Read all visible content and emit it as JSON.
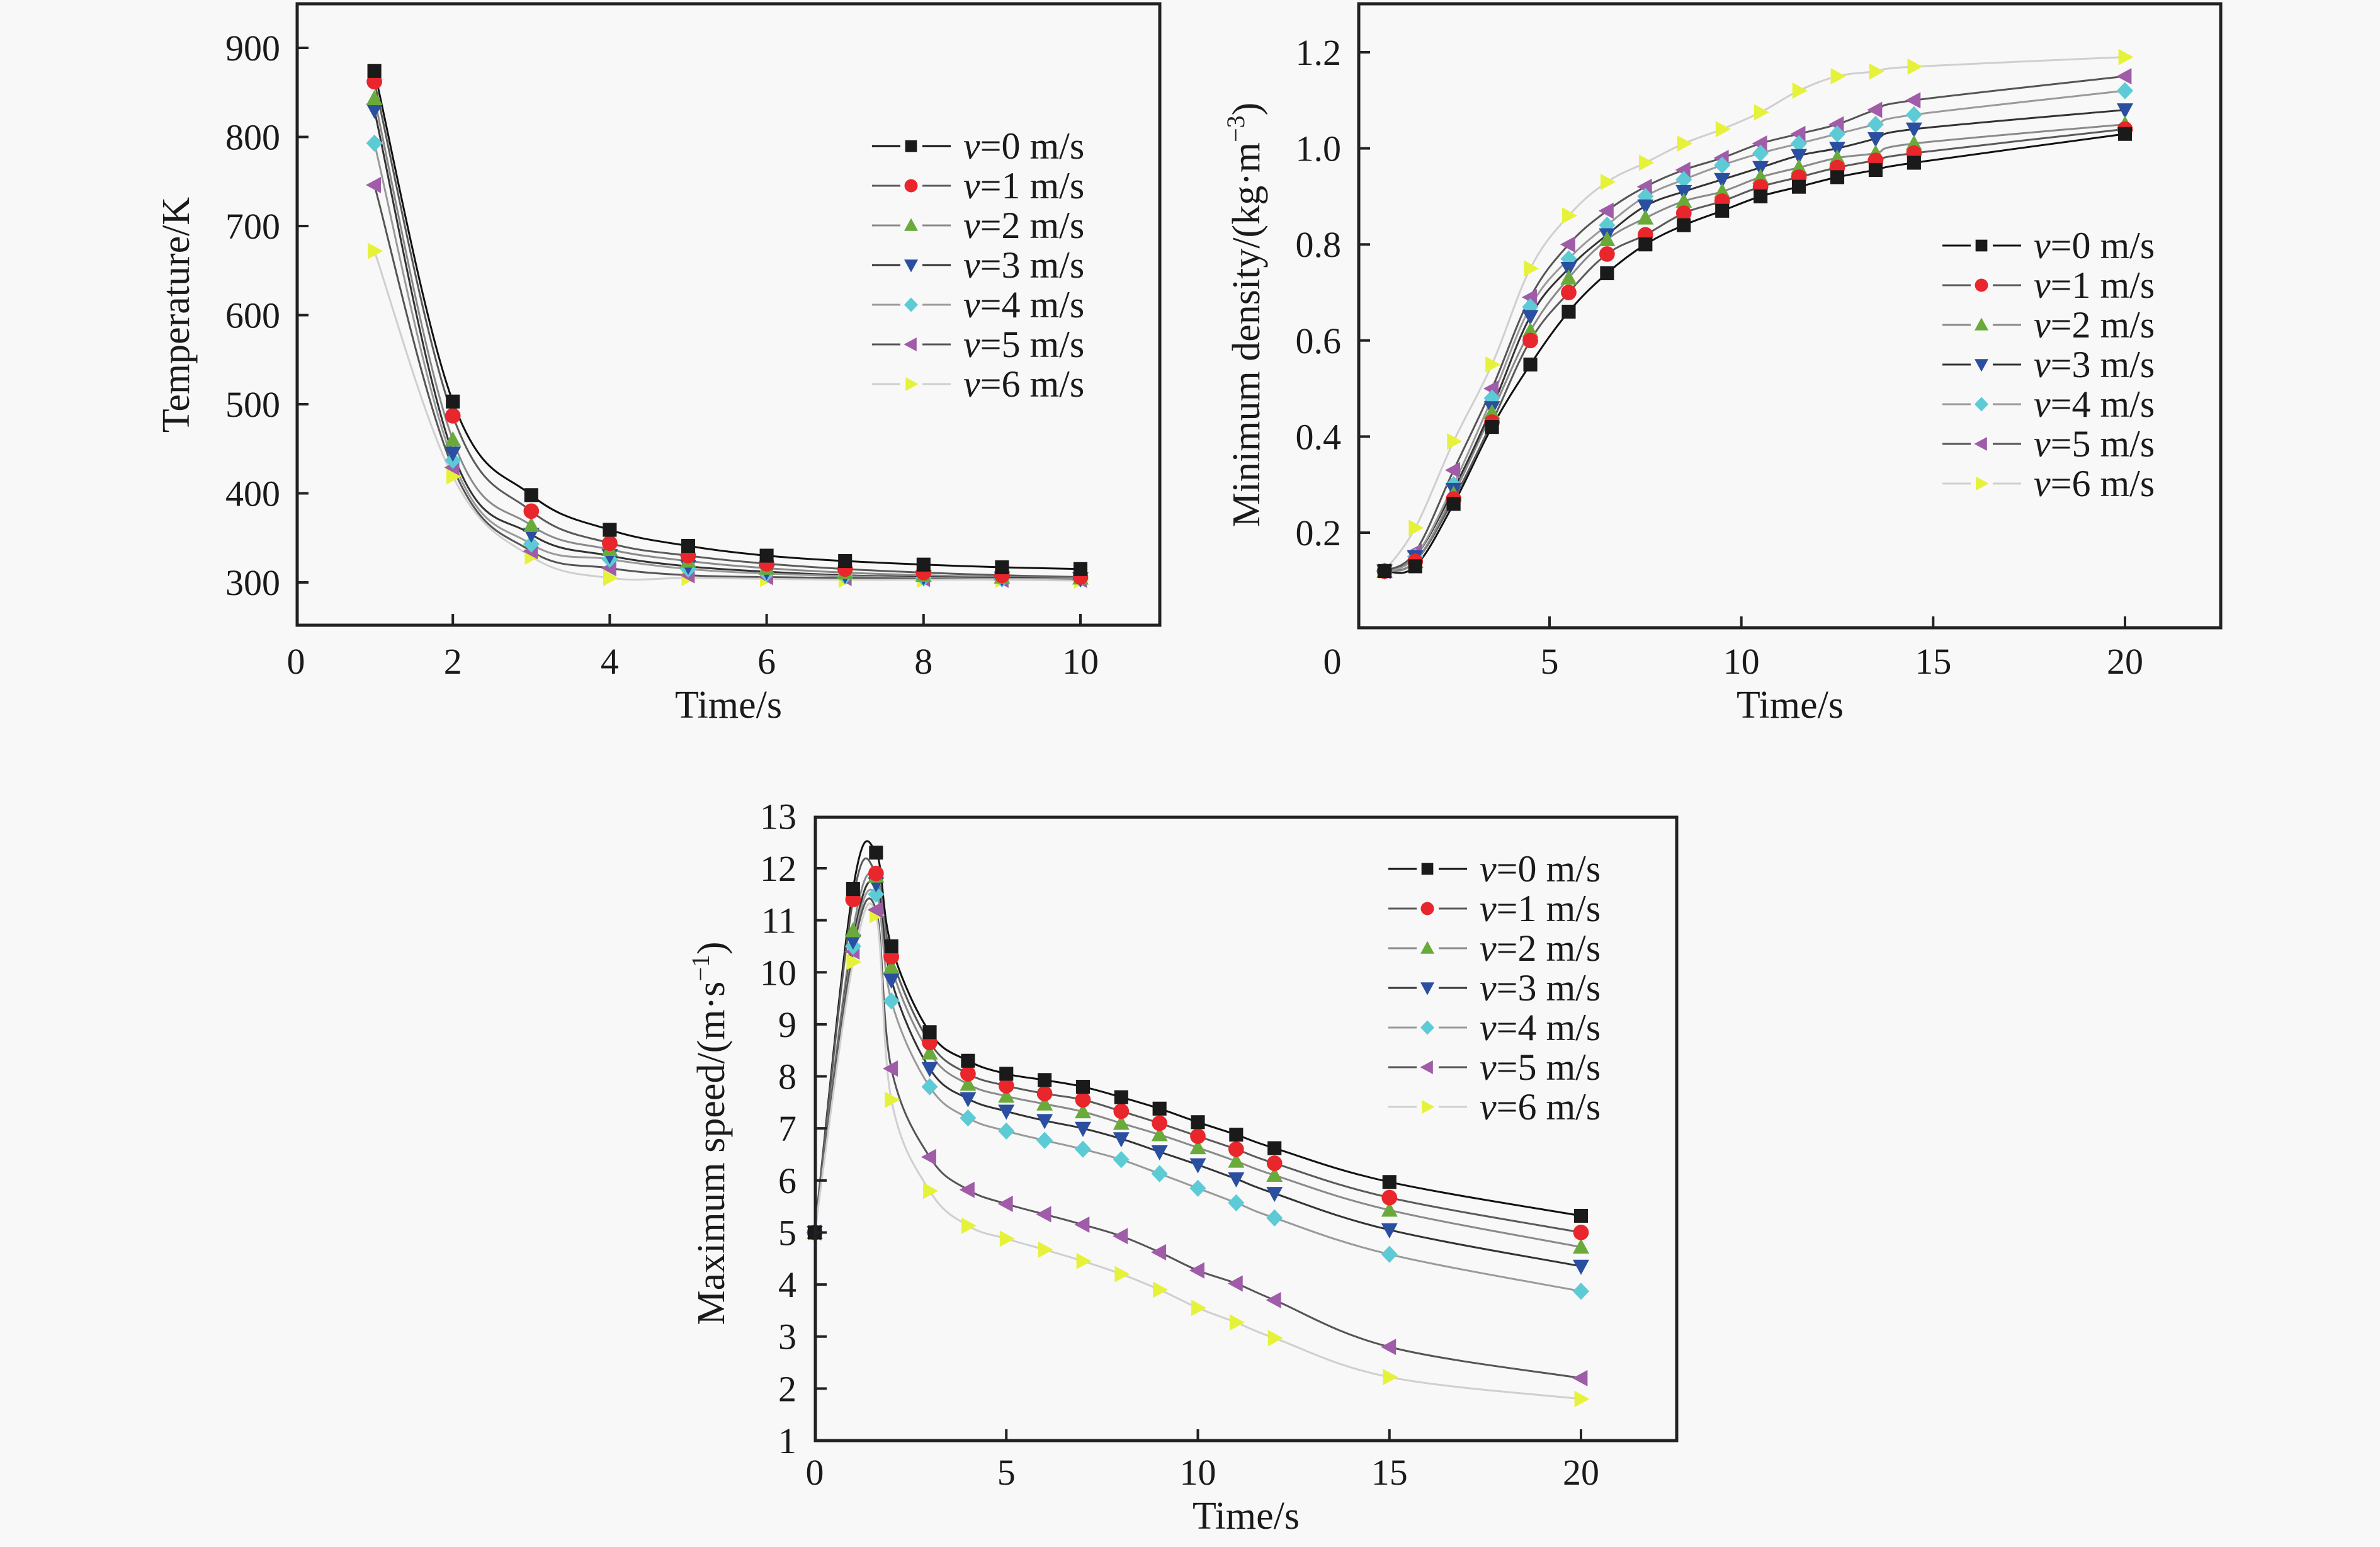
{
  "figure": {
    "background": "#f8f8f8",
    "series_styles": [
      {
        "name": "v=0 m/s",
        "prefix": "v",
        "suffix": "=0 m/s",
        "marker": "square",
        "marker_color": "#1a1a1a",
        "line_color": "#111111"
      },
      {
        "name": "v=1 m/s",
        "prefix": "v",
        "suffix": "=1 m/s",
        "marker": "circle",
        "marker_color": "#e8262b",
        "line_color": "#5a5a5a"
      },
      {
        "name": "v=2 m/s",
        "prefix": "v",
        "suffix": "=2 m/s",
        "marker": "triangle-up",
        "marker_color": "#6aaa3a",
        "line_color": "#8a8a8a"
      },
      {
        "name": "v=3 m/s",
        "prefix": "v",
        "suffix": "=3 m/s",
        "marker": "triangle-down",
        "marker_color": "#2a4fa0",
        "line_color": "#333333"
      },
      {
        "name": "v=4 m/s",
        "prefix": "v",
        "suffix": "=4 m/s",
        "marker": "diamond",
        "marker_color": "#5ccbd6",
        "line_color": "#9a9a9a"
      },
      {
        "name": "v=5 m/s",
        "prefix": "v",
        "suffix": "=5 m/s",
        "marker": "triangle-left",
        "marker_color": "#a05ca8",
        "line_color": "#555555"
      },
      {
        "name": "v=6 m/s",
        "prefix": "v",
        "suffix": "=6 m/s",
        "marker": "triangle-right",
        "marker_color": "#e6f23a",
        "line_color": "#cfcfcf"
      }
    ]
  },
  "chart_data": [
    {
      "id": "temperature",
      "type": "line",
      "title": "",
      "xlabel": "Time/s",
      "ylabel": "Temperature/K",
      "xlim": [
        0,
        11
      ],
      "ylim": [
        250,
        950
      ],
      "xticks": [
        0,
        2,
        4,
        6,
        8,
        10
      ],
      "yticks": [
        300,
        400,
        500,
        600,
        700,
        800,
        900
      ],
      "grid": false,
      "legend_position": "top-right",
      "x": [
        1,
        2,
        3,
        4,
        5,
        6,
        7,
        8,
        9,
        10
      ],
      "series": [
        {
          "name": "v=0 m/s",
          "values": [
            874,
            503,
            398,
            359,
            341,
            330,
            324,
            320,
            317,
            315
          ]
        },
        {
          "name": "v=1 m/s",
          "values": [
            862,
            487,
            380,
            344,
            330,
            321,
            315,
            311,
            308,
            306
          ]
        },
        {
          "name": "v=2 m/s",
          "values": [
            843,
            460,
            364,
            337,
            324,
            316,
            311,
            308,
            306,
            305
          ]
        },
        {
          "name": "v=3 m/s",
          "values": [
            830,
            445,
            354,
            330,
            318,
            312,
            308,
            306,
            305,
            304
          ]
        },
        {
          "name": "v=4 m/s",
          "values": [
            793,
            437,
            343,
            326,
            315,
            310,
            307,
            305,
            304,
            304
          ]
        },
        {
          "name": "v=5 m/s",
          "values": [
            746,
            429,
            335,
            316,
            308,
            306,
            305,
            304,
            303,
            303
          ]
        },
        {
          "name": "v=6 m/s",
          "values": [
            672,
            419,
            329,
            305,
            305,
            304,
            303,
            303,
            303,
            302
          ]
        }
      ]
    },
    {
      "id": "min-density",
      "type": "line",
      "title": "",
      "xlabel": "Time/s",
      "ylabel": "Minimum density/(kg·m⁻³)",
      "xlim": [
        0.7,
        22.5
      ],
      "ylim": [
        0.04,
        1.3
      ],
      "xticks": [
        0,
        5,
        10,
        15,
        20
      ],
      "yticks": [
        0.2,
        0.4,
        0.6,
        0.8,
        1.0,
        1.2
      ],
      "ytick_labels": [
        "0.2",
        "0.4",
        "0.6",
        "0.8",
        "1.0",
        "1.2"
      ],
      "grid": false,
      "legend_position": "right",
      "x": [
        0.7,
        1.5,
        2.5,
        3.5,
        4.5,
        5.5,
        6.5,
        7.5,
        8.5,
        9.5,
        10.5,
        11.5,
        12.5,
        13.5,
        14.5,
        20
      ],
      "series": [
        {
          "name": "v=0 m/s",
          "values": [
            0.12,
            0.13,
            0.26,
            0.42,
            0.55,
            0.66,
            0.74,
            0.8,
            0.84,
            0.87,
            0.9,
            0.92,
            0.94,
            0.955,
            0.97,
            1.03
          ]
        },
        {
          "name": "v=1 m/s",
          "values": [
            0.12,
            0.14,
            0.27,
            0.43,
            0.6,
            0.7,
            0.78,
            0.82,
            0.865,
            0.89,
            0.92,
            0.94,
            0.96,
            0.975,
            0.99,
            1.04
          ]
        },
        {
          "name": "v=2 m/s",
          "values": [
            0.12,
            0.14,
            0.28,
            0.45,
            0.62,
            0.73,
            0.81,
            0.855,
            0.89,
            0.91,
            0.94,
            0.96,
            0.98,
            0.99,
            1.01,
            1.05
          ]
        },
        {
          "name": "v=3 m/s",
          "values": [
            0.12,
            0.15,
            0.29,
            0.46,
            0.65,
            0.75,
            0.82,
            0.88,
            0.91,
            0.935,
            0.96,
            0.985,
            1.0,
            1.02,
            1.04,
            1.08
          ]
        },
        {
          "name": "v=4 m/s",
          "values": [
            0.12,
            0.15,
            0.3,
            0.48,
            0.67,
            0.77,
            0.84,
            0.9,
            0.935,
            0.965,
            0.99,
            1.01,
            1.03,
            1.05,
            1.07,
            1.12
          ]
        },
        {
          "name": "v=5 m/s",
          "values": [
            0.12,
            0.16,
            0.33,
            0.5,
            0.69,
            0.8,
            0.87,
            0.92,
            0.955,
            0.98,
            1.01,
            1.03,
            1.05,
            1.08,
            1.1,
            1.15
          ]
        },
        {
          "name": "v=6 m/s",
          "values": [
            0.12,
            0.21,
            0.39,
            0.55,
            0.75,
            0.86,
            0.93,
            0.97,
            1.01,
            1.04,
            1.075,
            1.12,
            1.15,
            1.16,
            1.17,
            1.19
          ]
        }
      ]
    },
    {
      "id": "max-speed",
      "type": "line",
      "title": "",
      "xlabel": "Time/s",
      "ylabel": "Maximum speed/(m·s⁻¹)",
      "xlim": [
        0,
        22.5
      ],
      "ylim": [
        1,
        13
      ],
      "xticks": [
        0,
        5,
        10,
        15,
        20
      ],
      "yticks": [
        1,
        2,
        3,
        4,
        5,
        6,
        7,
        8,
        9,
        10,
        11,
        12,
        13
      ],
      "grid": false,
      "legend_position": "top-right",
      "x": [
        0,
        1,
        1.6,
        2,
        3,
        4,
        5,
        6,
        7,
        8,
        9,
        10,
        11,
        12,
        15,
        20
      ],
      "series": [
        {
          "name": "v=0 m/s",
          "values": [
            5.0,
            11.6,
            12.3,
            10.5,
            8.85,
            8.3,
            8.05,
            7.93,
            7.8,
            7.6,
            7.38,
            7.12,
            6.88,
            6.62,
            5.97,
            5.32
          ]
        },
        {
          "name": "v=1 m/s",
          "values": [
            5.0,
            11.4,
            11.9,
            10.3,
            8.65,
            8.05,
            7.82,
            7.67,
            7.55,
            7.33,
            7.1,
            6.85,
            6.6,
            6.33,
            5.67,
            5.0
          ]
        },
        {
          "name": "v=2 m/s",
          "values": [
            5.0,
            10.8,
            11.85,
            10.1,
            8.45,
            7.85,
            7.62,
            7.47,
            7.32,
            7.1,
            6.88,
            6.63,
            6.37,
            6.1,
            5.43,
            4.72
          ]
        },
        {
          "name": "v=3 m/s",
          "values": [
            5.0,
            10.6,
            11.7,
            9.85,
            8.15,
            7.57,
            7.33,
            7.15,
            7.0,
            6.8,
            6.55,
            6.3,
            6.03,
            5.75,
            5.05,
            4.35
          ]
        },
        {
          "name": "v=4 m/s",
          "values": [
            5.0,
            10.5,
            11.5,
            9.45,
            7.8,
            7.2,
            6.95,
            6.77,
            6.6,
            6.4,
            6.13,
            5.85,
            5.57,
            5.28,
            4.58,
            3.87
          ]
        },
        {
          "name": "v=5 m/s",
          "values": [
            5.0,
            10.4,
            11.2,
            8.15,
            6.45,
            5.82,
            5.55,
            5.35,
            5.15,
            4.93,
            4.62,
            4.27,
            4.02,
            3.7,
            2.8,
            2.2
          ]
        },
        {
          "name": "v=6 m/s",
          "values": [
            5.0,
            10.2,
            11.1,
            7.55,
            5.8,
            5.13,
            4.88,
            4.67,
            4.45,
            4.2,
            3.9,
            3.55,
            3.27,
            2.97,
            2.22,
            1.8
          ]
        }
      ]
    }
  ]
}
